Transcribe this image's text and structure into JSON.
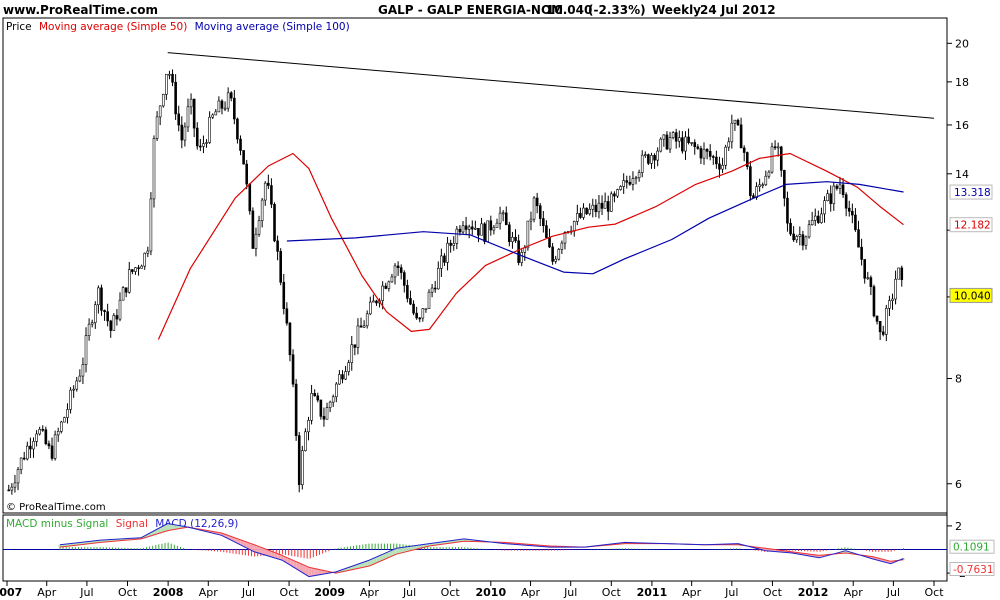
{
  "header": {
    "site": "www.ProRealTime.com",
    "title": "GALP - GALP ENERGIA-NOM",
    "last_price": "10.040",
    "change": "(-2.33%)",
    "period": "Weekly",
    "date": "24 Jul 2012",
    "watermark": "© ProRealTime.com"
  },
  "colors": {
    "candle": "#000000",
    "ma50": "#dd0000",
    "ma100": "#0000aa",
    "trendline": "#000000",
    "macd_hist": "#33aa33",
    "macd_signal": "#ee3333",
    "macd_line": "#2222cc",
    "fill_down": "#f4a5b0",
    "fill_up": "#b8e0b8",
    "label_price_bg": "#ffff00"
  },
  "chart_data": [
    {
      "type": "candlestick",
      "panel": "price",
      "legend": {
        "price": "Price",
        "ma50": "Moving average (Simple 50)",
        "ma100": "Moving average (Simple 100)"
      },
      "y_ticks": [
        6,
        8,
        10,
        12,
        14,
        16,
        18,
        20
      ],
      "y_tick_labels": [
        "6",
        "8",
        "",
        "",
        "14",
        "16",
        "18",
        "20"
      ],
      "ylim": [
        5.6,
        21.2
      ],
      "log_scale": true,
      "grid": false,
      "legend_placement": "top-left",
      "price_labels": [
        {
          "series": "ma100",
          "value": 13.318,
          "text": "13.318"
        },
        {
          "series": "ma50",
          "value": 12.182,
          "text": "12.182"
        },
        {
          "series": "price",
          "value": 10.04,
          "text": "10.040"
        }
      ],
      "price_series": [
        {
          "date": "2007-01-05",
          "close": 5.9
        },
        {
          "date": "2007-02-20",
          "close": 6.7
        },
        {
          "date": "2007-03-10",
          "close": 7.0
        },
        {
          "date": "2007-04-10",
          "close": 6.5
        },
        {
          "date": "2007-05-15",
          "close": 7.3
        },
        {
          "date": "2007-06-20",
          "close": 8.3
        },
        {
          "date": "2007-07-25",
          "close": 10.2
        },
        {
          "date": "2007-08-25",
          "close": 9.1
        },
        {
          "date": "2007-10-05",
          "close": 10.6
        },
        {
          "date": "2007-11-15",
          "close": 11.3
        },
        {
          "date": "2007-12-01",
          "close": 15.5
        },
        {
          "date": "2007-12-31",
          "close": 18.9
        },
        {
          "date": "2008-01-31",
          "close": 15.3
        },
        {
          "date": "2008-02-20",
          "close": 17.0
        },
        {
          "date": "2008-03-10",
          "close": 14.7
        },
        {
          "date": "2008-04-15",
          "close": 16.5
        },
        {
          "date": "2008-05-20",
          "close": 17.2
        },
        {
          "date": "2008-06-20",
          "close": 14.5
        },
        {
          "date": "2008-07-10",
          "close": 11.5
        },
        {
          "date": "2008-08-10",
          "close": 13.8
        },
        {
          "date": "2008-09-05",
          "close": 11.2
        },
        {
          "date": "2008-10-03",
          "close": 8.5
        },
        {
          "date": "2008-10-24",
          "close": 6.1
        },
        {
          "date": "2008-11-20",
          "close": 7.6
        },
        {
          "date": "2008-12-20",
          "close": 7.2
        },
        {
          "date": "2009-02-20",
          "close": 8.7
        },
        {
          "date": "2009-04-10",
          "close": 9.8
        },
        {
          "date": "2009-06-01",
          "close": 11.0
        },
        {
          "date": "2009-07-20",
          "close": 9.2
        },
        {
          "date": "2009-09-10",
          "close": 10.9
        },
        {
          "date": "2009-10-30",
          "close": 12.4
        },
        {
          "date": "2009-12-20",
          "close": 11.9
        },
        {
          "date": "2010-01-20",
          "close": 12.6
        },
        {
          "date": "2010-03-10",
          "close": 11.0
        },
        {
          "date": "2010-04-10",
          "close": 13.0
        },
        {
          "date": "2010-05-20",
          "close": 11.0
        },
        {
          "date": "2010-06-20",
          "close": 12.1
        },
        {
          "date": "2010-08-10",
          "close": 12.6
        },
        {
          "date": "2010-10-10",
          "close": 13.0
        },
        {
          "date": "2010-11-20",
          "close": 14.1
        },
        {
          "date": "2010-12-31",
          "close": 14.8
        },
        {
          "date": "2011-02-10",
          "close": 15.4
        },
        {
          "date": "2011-04-10",
          "close": 15.0
        },
        {
          "date": "2011-06-10",
          "close": 14.4
        },
        {
          "date": "2011-07-01",
          "close": 16.1
        },
        {
          "date": "2011-07-25",
          "close": 15.3
        },
        {
          "date": "2011-08-15",
          "close": 13.0
        },
        {
          "date": "2011-09-10",
          "close": 13.8
        },
        {
          "date": "2011-10-10",
          "close": 15.2
        },
        {
          "date": "2011-11-05",
          "close": 12.0
        },
        {
          "date": "2011-12-10",
          "close": 11.8
        },
        {
          "date": "2012-01-20",
          "close": 12.7
        },
        {
          "date": "2012-03-05",
          "close": 13.7
        },
        {
          "date": "2012-04-10",
          "close": 11.6
        },
        {
          "date": "2012-05-10",
          "close": 10.1
        },
        {
          "date": "2012-06-01",
          "close": 9.0
        },
        {
          "date": "2012-06-25",
          "close": 9.8
        },
        {
          "date": "2012-07-10",
          "close": 10.8
        },
        {
          "date": "2012-07-24",
          "close": 10.04
        }
      ],
      "ma50_series": [
        {
          "date": "2007-12-10",
          "value": 8.9
        },
        {
          "date": "2008-02-20",
          "value": 10.8
        },
        {
          "date": "2008-06-01",
          "value": 13.1
        },
        {
          "date": "2008-08-15",
          "value": 14.3
        },
        {
          "date": "2008-10-10",
          "value": 14.8
        },
        {
          "date": "2008-11-15",
          "value": 14.2
        },
        {
          "date": "2009-01-05",
          "value": 12.4
        },
        {
          "date": "2009-03-15",
          "value": 10.6
        },
        {
          "date": "2009-05-10",
          "value": 9.6
        },
        {
          "date": "2009-07-05",
          "value": 9.1
        },
        {
          "date": "2009-08-15",
          "value": 9.15
        },
        {
          "date": "2009-10-15",
          "value": 10.1
        },
        {
          "date": "2009-12-20",
          "value": 10.9
        },
        {
          "date": "2010-03-10",
          "value": 11.4
        },
        {
          "date": "2010-05-20",
          "value": 11.8
        },
        {
          "date": "2010-08-10",
          "value": 12.1
        },
        {
          "date": "2010-10-10",
          "value": 12.2
        },
        {
          "date": "2011-01-10",
          "value": 12.8
        },
        {
          "date": "2011-04-10",
          "value": 13.6
        },
        {
          "date": "2011-07-01",
          "value": 14.1
        },
        {
          "date": "2011-09-01",
          "value": 14.6
        },
        {
          "date": "2011-11-10",
          "value": 14.8
        },
        {
          "date": "2012-02-01",
          "value": 14.1
        },
        {
          "date": "2012-04-10",
          "value": 13.5
        },
        {
          "date": "2012-06-01",
          "value": 12.8
        },
        {
          "date": "2012-07-24",
          "value": 12.18
        }
      ],
      "ma100_series": [
        {
          "date": "2008-09-26",
          "value": 11.65
        },
        {
          "date": "2009-03-01",
          "value": 11.75
        },
        {
          "date": "2009-08-01",
          "value": 11.95
        },
        {
          "date": "2009-11-15",
          "value": 11.85
        },
        {
          "date": "2010-03-10",
          "value": 11.2
        },
        {
          "date": "2010-06-15",
          "value": 10.7
        },
        {
          "date": "2010-08-20",
          "value": 10.65
        },
        {
          "date": "2010-11-01",
          "value": 11.1
        },
        {
          "date": "2011-02-15",
          "value": 11.7
        },
        {
          "date": "2011-05-10",
          "value": 12.4
        },
        {
          "date": "2011-08-20",
          "value": 13.1
        },
        {
          "date": "2011-11-01",
          "value": 13.6
        },
        {
          "date": "2012-02-01",
          "value": 13.7
        },
        {
          "date": "2012-04-15",
          "value": 13.6
        },
        {
          "date": "2012-07-24",
          "value": 13.32
        }
      ],
      "trendline": [
        {
          "date": "2007-12-31",
          "value": 19.5
        },
        {
          "date": "2012-10-01",
          "value": 16.3
        }
      ]
    },
    {
      "type": "line",
      "panel": "macd",
      "legend": {
        "hist": "MACD minus Signal",
        "signal": "Signal",
        "macd": "MACD (12,26,9)"
      },
      "y_ticks": [
        2,
        -2
      ],
      "y_tick_labels": [
        "2",
        "-2"
      ],
      "ylim": [
        -2.5,
        2.5
      ],
      "zero_line": true,
      "grid": false,
      "legend_placement": "top-left",
      "value_labels": [
        {
          "series": "hist",
          "value": 0.1091,
          "text": "0.1091"
        },
        {
          "series": "macd",
          "value": -0.7631,
          "text": "-0.7631"
        }
      ],
      "macd_series": [
        {
          "date": "2007-05-01",
          "value": 0.4
        },
        {
          "date": "2007-08-01",
          "value": 0.8
        },
        {
          "date": "2007-11-01",
          "value": 1.0
        },
        {
          "date": "2007-12-31",
          "value": 2.2
        },
        {
          "date": "2008-02-15",
          "value": 1.9
        },
        {
          "date": "2008-05-01",
          "value": 1.2
        },
        {
          "date": "2008-07-15",
          "value": -0.2
        },
        {
          "date": "2008-09-15",
          "value": -0.9
        },
        {
          "date": "2008-11-15",
          "value": -2.3
        },
        {
          "date": "2009-01-15",
          "value": -1.9
        },
        {
          "date": "2009-04-01",
          "value": -0.9
        },
        {
          "date": "2009-06-01",
          "value": 0.1
        },
        {
          "date": "2009-08-15",
          "value": 0.5
        },
        {
          "date": "2009-11-01",
          "value": 0.9
        },
        {
          "date": "2010-02-01",
          "value": 0.5
        },
        {
          "date": "2010-05-15",
          "value": 0.2
        },
        {
          "date": "2010-08-01",
          "value": 0.2
        },
        {
          "date": "2010-11-01",
          "value": 0.6
        },
        {
          "date": "2011-02-01",
          "value": 0.5
        },
        {
          "date": "2011-05-01",
          "value": 0.4
        },
        {
          "date": "2011-07-15",
          "value": 0.5
        },
        {
          "date": "2011-09-15",
          "value": -0.1
        },
        {
          "date": "2011-11-15",
          "value": -0.3
        },
        {
          "date": "2012-01-15",
          "value": -0.7
        },
        {
          "date": "2012-03-15",
          "value": -0.1
        },
        {
          "date": "2012-05-15",
          "value": -0.8
        },
        {
          "date": "2012-06-25",
          "value": -1.2
        },
        {
          "date": "2012-07-24",
          "value": -0.76
        }
      ],
      "signal_series": [
        {
          "date": "2007-05-01",
          "value": 0.2
        },
        {
          "date": "2007-08-01",
          "value": 0.6
        },
        {
          "date": "2007-11-01",
          "value": 0.9
        },
        {
          "date": "2007-12-31",
          "value": 1.6
        },
        {
          "date": "2008-02-15",
          "value": 1.9
        },
        {
          "date": "2008-05-01",
          "value": 1.4
        },
        {
          "date": "2008-07-15",
          "value": 0.4
        },
        {
          "date": "2008-09-15",
          "value": -0.5
        },
        {
          "date": "2008-11-15",
          "value": -1.5
        },
        {
          "date": "2009-01-15",
          "value": -2.0
        },
        {
          "date": "2009-04-01",
          "value": -1.4
        },
        {
          "date": "2009-06-01",
          "value": -0.4
        },
        {
          "date": "2009-08-15",
          "value": 0.3
        },
        {
          "date": "2009-11-01",
          "value": 0.7
        },
        {
          "date": "2010-02-01",
          "value": 0.6
        },
        {
          "date": "2010-05-15",
          "value": 0.3
        },
        {
          "date": "2010-08-01",
          "value": 0.2
        },
        {
          "date": "2010-11-01",
          "value": 0.5
        },
        {
          "date": "2011-02-01",
          "value": 0.5
        },
        {
          "date": "2011-05-01",
          "value": 0.4
        },
        {
          "date": "2011-07-15",
          "value": 0.4
        },
        {
          "date": "2011-09-15",
          "value": 0.1
        },
        {
          "date": "2011-11-15",
          "value": -0.2
        },
        {
          "date": "2012-01-15",
          "value": -0.5
        },
        {
          "date": "2012-03-15",
          "value": -0.3
        },
        {
          "date": "2012-05-15",
          "value": -0.6
        },
        {
          "date": "2012-06-25",
          "value": -1.0
        },
        {
          "date": "2012-07-24",
          "value": -0.87
        }
      ]
    }
  ],
  "x_axis": {
    "labels": [
      {
        "date": "2007-01-01",
        "text": "2007",
        "bold": true
      },
      {
        "date": "2007-04-01",
        "text": "Apr",
        "bold": false
      },
      {
        "date": "2007-07-01",
        "text": "Jul",
        "bold": false
      },
      {
        "date": "2007-10-01",
        "text": "Oct",
        "bold": false
      },
      {
        "date": "2008-01-01",
        "text": "2008",
        "bold": true
      },
      {
        "date": "2008-04-01",
        "text": "Apr",
        "bold": false
      },
      {
        "date": "2008-07-01",
        "text": "Jul",
        "bold": false
      },
      {
        "date": "2008-10-01",
        "text": "Oct",
        "bold": false
      },
      {
        "date": "2009-01-01",
        "text": "2009",
        "bold": true
      },
      {
        "date": "2009-04-01",
        "text": "Apr",
        "bold": false
      },
      {
        "date": "2009-07-01",
        "text": "Jul",
        "bold": false
      },
      {
        "date": "2009-10-01",
        "text": "Oct",
        "bold": false
      },
      {
        "date": "2010-01-01",
        "text": "2010",
        "bold": true
      },
      {
        "date": "2010-04-01",
        "text": "Apr",
        "bold": false
      },
      {
        "date": "2010-07-01",
        "text": "Jul",
        "bold": false
      },
      {
        "date": "2010-10-01",
        "text": "Oct",
        "bold": false
      },
      {
        "date": "2011-01-01",
        "text": "2011",
        "bold": true
      },
      {
        "date": "2011-04-01",
        "text": "Apr",
        "bold": false
      },
      {
        "date": "2011-07-01",
        "text": "Jul",
        "bold": false
      },
      {
        "date": "2011-10-01",
        "text": "Oct",
        "bold": false
      },
      {
        "date": "2012-01-01",
        "text": "2012",
        "bold": true
      },
      {
        "date": "2012-04-01",
        "text": "Apr",
        "bold": false
      },
      {
        "date": "2012-07-01",
        "text": "Jul",
        "bold": false
      },
      {
        "date": "2012-10-01",
        "text": "Oct",
        "bold": false
      }
    ]
  }
}
